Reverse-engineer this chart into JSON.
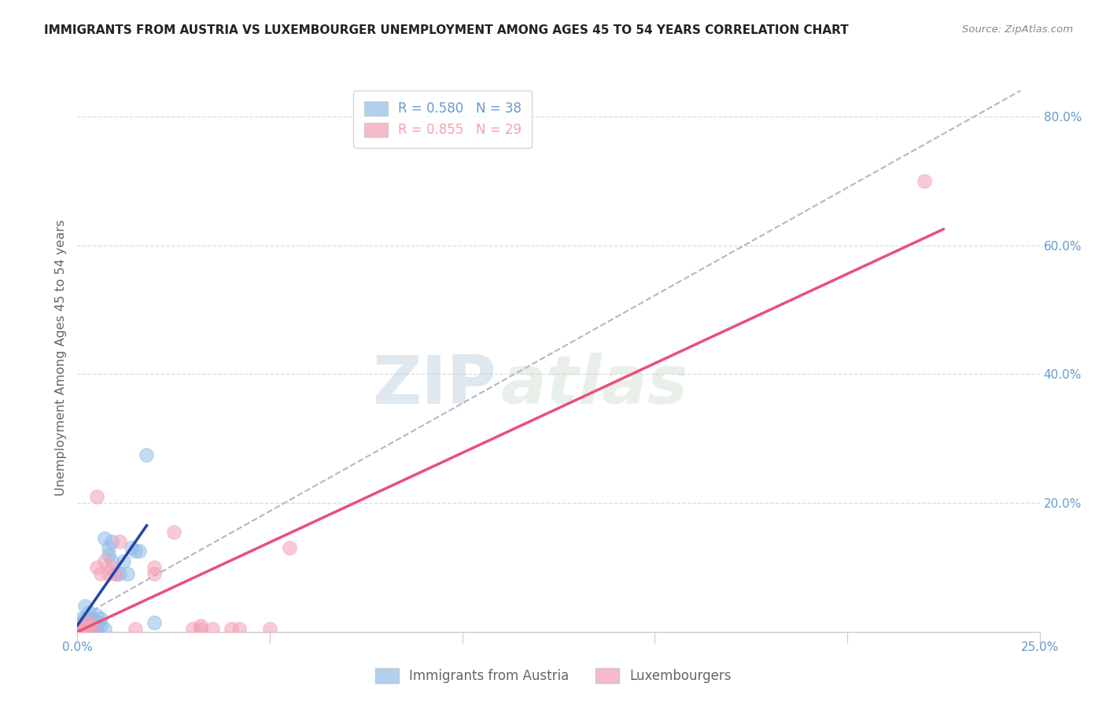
{
  "title": "IMMIGRANTS FROM AUSTRIA VS LUXEMBOURGER UNEMPLOYMENT AMONG AGES 45 TO 54 YEARS CORRELATION CHART",
  "source": "Source: ZipAtlas.com",
  "ylabel": "Unemployment Among Ages 45 to 54 years",
  "xlim": [
    0.0,
    0.25
  ],
  "ylim": [
    0.0,
    0.85
  ],
  "xticks": [
    0.0,
    0.05,
    0.1,
    0.15,
    0.2,
    0.25
  ],
  "xticklabels": [
    "0.0%",
    "",
    "",
    "",
    "",
    "25.0%"
  ],
  "yticks_right": [
    0.0,
    0.2,
    0.4,
    0.6,
    0.8
  ],
  "yticklabels_right": [
    "",
    "20.0%",
    "40.0%",
    "60.0%",
    "80.0%"
  ],
  "watermark_zip": "ZIP",
  "watermark_atlas": "atlas",
  "series1_label": "Immigrants from Austria",
  "series2_label": "Luxembourgers",
  "series1_color": "#90bce8",
  "series2_color": "#f4a0b5",
  "series1_line_color": "#2244aa",
  "series2_line_color": "#e8507a",
  "dashed_line_color": "#b0b8c8",
  "R1": "0.580",
  "N1": "38",
  "R2": "0.855",
  "N2": "29",
  "blue_x": [
    0.0005,
    0.001,
    0.001,
    0.001,
    0.0015,
    0.002,
    0.002,
    0.002,
    0.002,
    0.003,
    0.003,
    0.003,
    0.003,
    0.003,
    0.004,
    0.004,
    0.004,
    0.005,
    0.005,
    0.005,
    0.005,
    0.006,
    0.006,
    0.007,
    0.007,
    0.008,
    0.008,
    0.009,
    0.009,
    0.01,
    0.011,
    0.012,
    0.013,
    0.014,
    0.015,
    0.016,
    0.018,
    0.02
  ],
  "blue_y": [
    0.01,
    0.005,
    0.01,
    0.02,
    0.01,
    0.005,
    0.01,
    0.02,
    0.04,
    0.005,
    0.01,
    0.015,
    0.02,
    0.03,
    0.005,
    0.01,
    0.02,
    0.005,
    0.01,
    0.015,
    0.025,
    0.01,
    0.02,
    0.005,
    0.145,
    0.12,
    0.13,
    0.11,
    0.14,
    0.09,
    0.09,
    0.11,
    0.09,
    0.13,
    0.125,
    0.125,
    0.275,
    0.015
  ],
  "pink_x": [
    0.0005,
    0.001,
    0.001,
    0.002,
    0.002,
    0.003,
    0.003,
    0.004,
    0.005,
    0.005,
    0.006,
    0.007,
    0.008,
    0.009,
    0.01,
    0.011,
    0.015,
    0.02,
    0.02,
    0.025,
    0.03,
    0.032,
    0.032,
    0.035,
    0.04,
    0.042,
    0.05,
    0.055,
    0.22
  ],
  "pink_y": [
    0.005,
    0.005,
    0.01,
    0.005,
    0.01,
    0.01,
    0.015,
    0.005,
    0.21,
    0.1,
    0.09,
    0.11,
    0.09,
    0.1,
    0.09,
    0.14,
    0.005,
    0.09,
    0.1,
    0.155,
    0.005,
    0.005,
    0.01,
    0.005,
    0.005,
    0.005,
    0.005,
    0.13,
    0.7
  ],
  "blue_line_x0": 0.0,
  "blue_line_x1": 0.018,
  "blue_line_y0": 0.01,
  "blue_line_y1": 0.165,
  "pink_line_x0": 0.0,
  "pink_line_x1": 0.225,
  "pink_line_y0": 0.0,
  "pink_line_y1": 0.625,
  "dashed_line_x0": 0.0,
  "dashed_line_x1": 0.245,
  "dashed_line_y0": 0.02,
  "dashed_line_y1": 0.84,
  "background_color": "#ffffff",
  "grid_color": "#dddddd",
  "title_color": "#222222",
  "axis_label_color": "#666666",
  "right_axis_color": "#6699cc",
  "tick_color": "#6699cc"
}
